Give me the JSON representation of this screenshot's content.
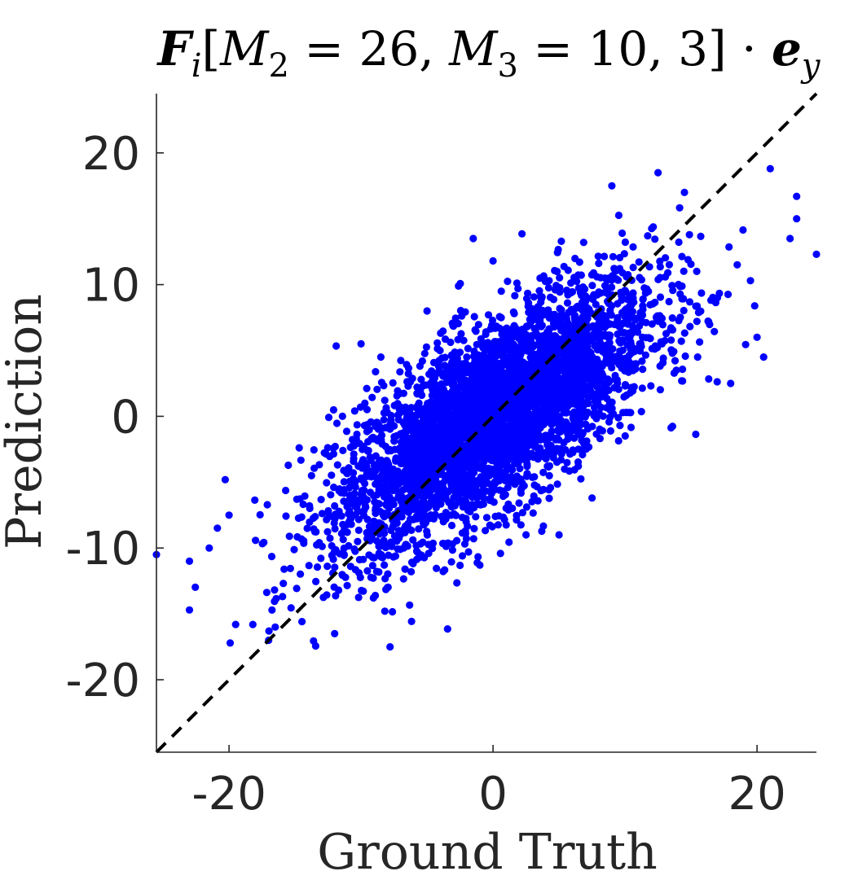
{
  "chart_data": {
    "type": "scatter",
    "title": {
      "base": "F",
      "sub_i": "i",
      "bracket_open": "[",
      "m2_base": "M",
      "m2_sub": "2",
      "m2_val": " = 26, ",
      "m3_base": "M",
      "m3_sub": "3",
      "m3_val": " = 10, 3",
      "bracket_close": "]",
      "dot": " · ",
      "e_base": "e",
      "e_sub": "y"
    },
    "xlabel": "Ground Truth",
    "ylabel": "Prediction",
    "xlim": [
      -25.5,
      24.5
    ],
    "ylim": [
      -25.5,
      24.5
    ],
    "xticks": [
      -20,
      0,
      20
    ],
    "yticks": [
      20,
      10,
      0,
      -10,
      -20
    ],
    "xtick_labels": [
      "-20",
      "0",
      "20"
    ],
    "ytick_labels": [
      "20",
      "10",
      "0",
      "-10",
      "-20"
    ],
    "reference_line": {
      "style": "dashed",
      "color": "#000000",
      "from": [
        -25.5,
        -25.5
      ],
      "to": [
        24.5,
        24.5
      ]
    },
    "series": [
      {
        "color": "#0000ff",
        "marker": "filled-circle",
        "approx_point_count": 4000,
        "distribution": {
          "x_mean": 0,
          "x_std": 6,
          "slope": 0.6,
          "residual_std": 3.5
        },
        "outliers": [
          {
            "x": -25.5,
            "y": -10.5
          },
          {
            "x": -23.0,
            "y": -11.0
          },
          {
            "x": -23.0,
            "y": -14.7
          },
          {
            "x": -21.5,
            "y": -10.0
          },
          {
            "x": -20.0,
            "y": -7.5
          },
          {
            "x": -19.5,
            "y": -15.8
          },
          {
            "x": -18.2,
            "y": -15.8
          },
          {
            "x": -17.0,
            "y": -17.0
          },
          {
            "x": -16.5,
            "y": -16.0
          },
          {
            "x": -12.0,
            "y": -16.5
          },
          {
            "x": -7.8,
            "y": -17.5
          },
          {
            "x": -10.0,
            "y": 5.5
          },
          {
            "x": -8.5,
            "y": 4.5
          },
          {
            "x": -5.0,
            "y": 8.0
          },
          {
            "x": -1.5,
            "y": 13.5
          },
          {
            "x": 0.0,
            "y": 11.8
          },
          {
            "x": 5.5,
            "y": 3.5
          },
          {
            "x": 7.5,
            "y": -6.2
          },
          {
            "x": 9.0,
            "y": 17.5
          },
          {
            "x": 12.5,
            "y": 18.5
          },
          {
            "x": 14.5,
            "y": 17.0
          },
          {
            "x": 21.0,
            "y": 18.8
          },
          {
            "x": 23.0,
            "y": 16.7
          },
          {
            "x": 23.0,
            "y": 15.0
          },
          {
            "x": 24.5,
            "y": 12.3
          },
          {
            "x": 22.5,
            "y": 13.5
          },
          {
            "x": 19.5,
            "y": 10.3
          },
          {
            "x": 20.5,
            "y": 4.5
          },
          {
            "x": 18.0,
            "y": 2.5
          },
          {
            "x": 20.0,
            "y": 6.0
          },
          {
            "x": 17.0,
            "y": 9.0
          },
          {
            "x": 18.5,
            "y": 11.5
          },
          {
            "x": 2.5,
            "y": -9.0
          },
          {
            "x": 5.0,
            "y": -9.0
          },
          {
            "x": -1.0,
            "y": -11.3
          },
          {
            "x": 15.5,
            "y": 4.5
          }
        ]
      }
    ]
  }
}
